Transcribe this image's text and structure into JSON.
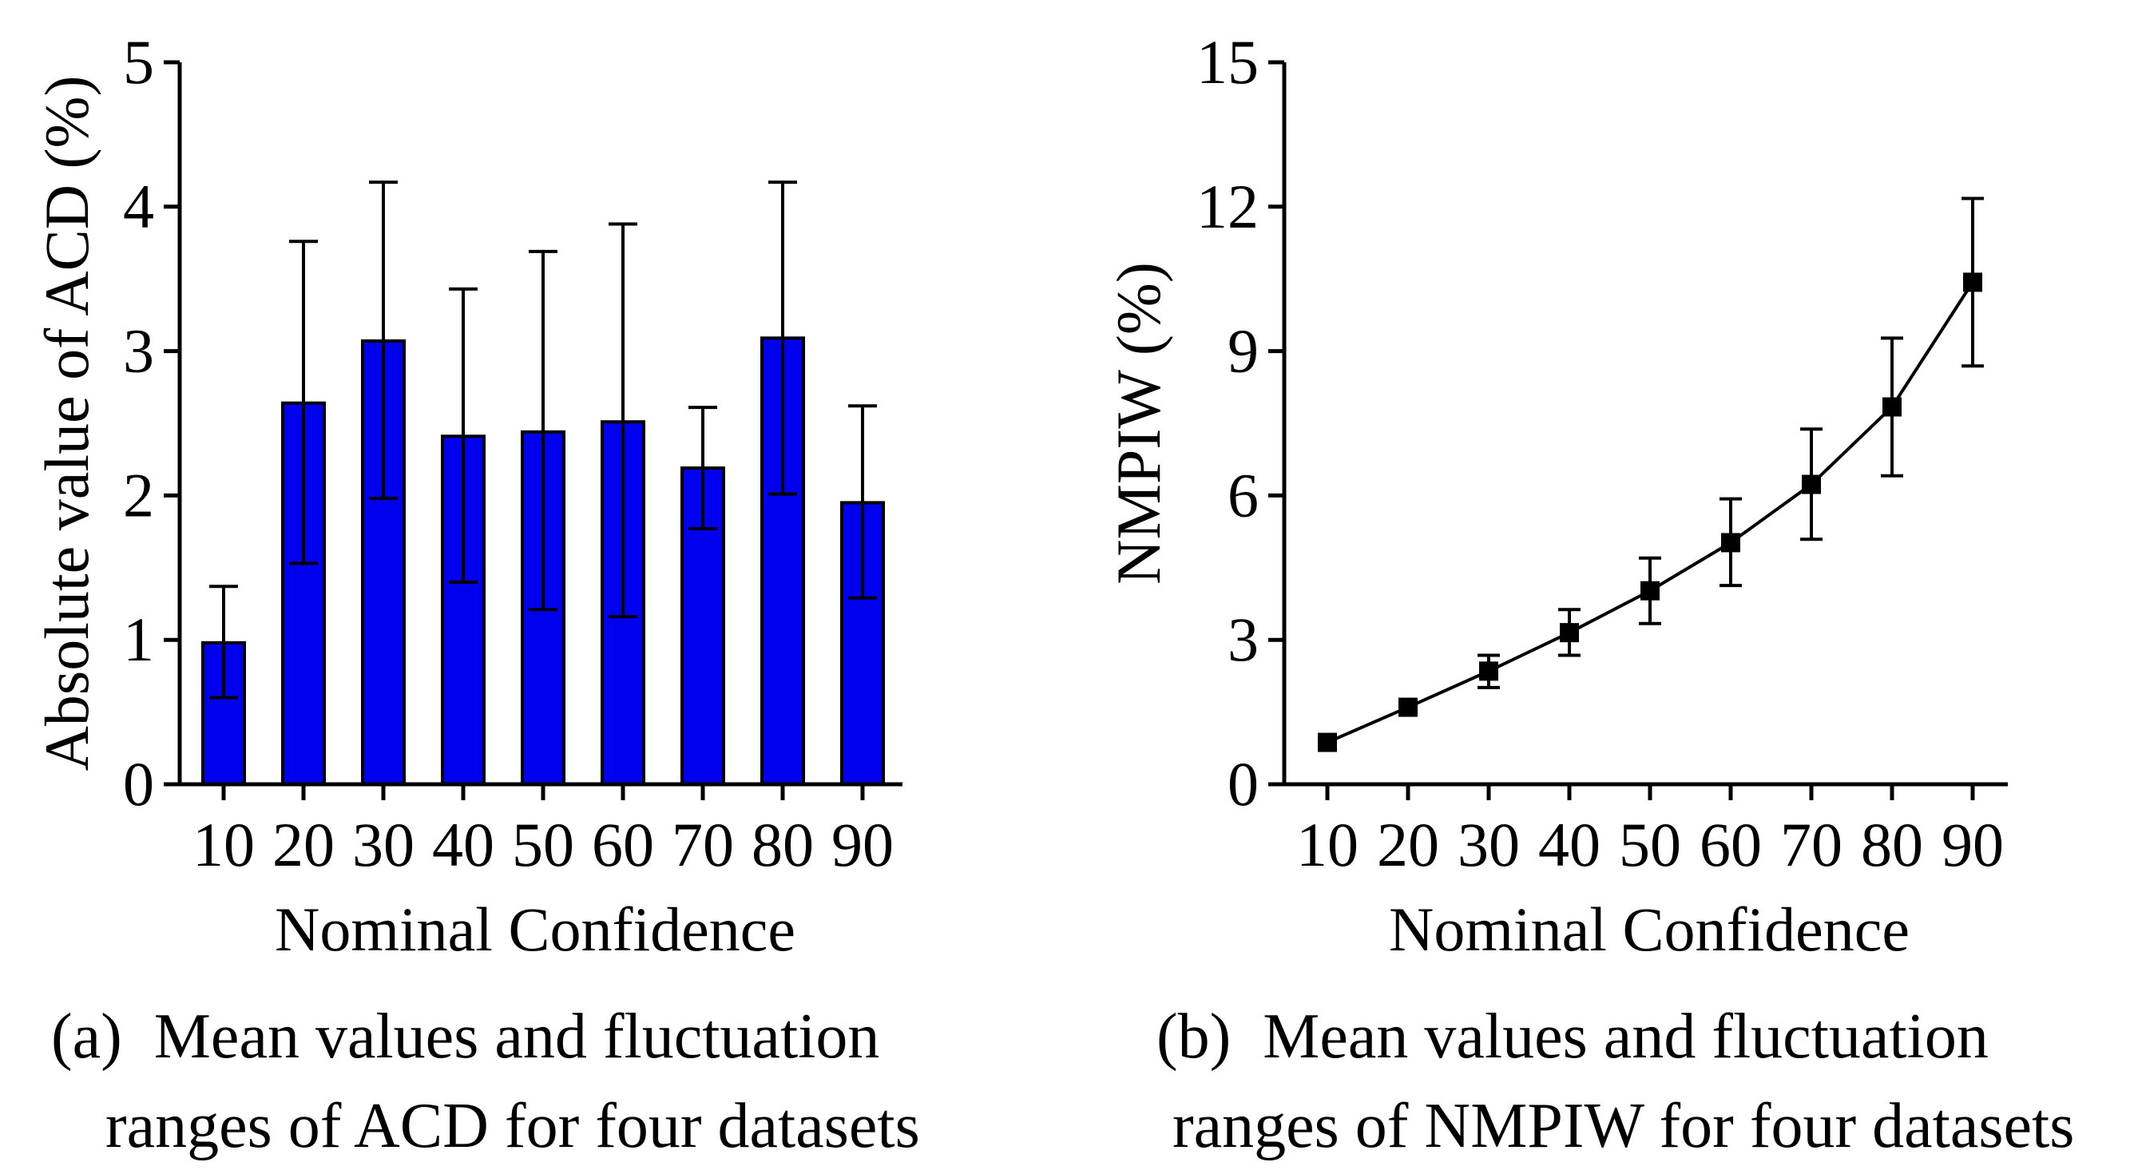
{
  "chart_data": [
    {
      "type": "bar",
      "panel_label": "(a)",
      "caption_line1": "Mean values and fluctuation",
      "caption_line2": "ranges of ACD for four datasets",
      "xlabel": "Nominal Confidence",
      "ylabel": "Absolute value of ACD (%)",
      "categories": [
        "10",
        "20",
        "30",
        "40",
        "50",
        "60",
        "70",
        "80",
        "90"
      ],
      "values": [
        0.98,
        2.64,
        3.07,
        2.41,
        2.44,
        2.51,
        2.19,
        3.09,
        1.95
      ],
      "error_upper": [
        1.37,
        3.76,
        4.17,
        3.43,
        3.69,
        3.88,
        2.61,
        4.17,
        2.62
      ],
      "error_lower": [
        0.6,
        1.53,
        1.98,
        1.4,
        1.21,
        1.16,
        1.77,
        2.01,
        1.29
      ],
      "ylim": [
        0,
        5
      ],
      "yticks": [
        "0",
        "1",
        "2",
        "3",
        "4",
        "5"
      ],
      "bar_color": "#0000ee",
      "grid": false
    },
    {
      "type": "line",
      "panel_label": "(b)",
      "caption_line1": "Mean values and fluctuation",
      "caption_line2": "ranges of NMPIW for four datasets",
      "xlabel": "Nominal Confidence",
      "ylabel": "NMPIW (%)",
      "categories": [
        "10",
        "20",
        "30",
        "40",
        "50",
        "60",
        "70",
        "80",
        "90"
      ],
      "values": [
        0.87,
        1.6,
        2.35,
        3.15,
        4.02,
        5.02,
        6.23,
        7.84,
        10.43
      ],
      "error_upper": [
        0.87,
        1.6,
        2.68,
        3.63,
        4.7,
        5.93,
        7.38,
        9.27,
        12.17
      ],
      "error_lower": [
        0.87,
        1.6,
        2.01,
        2.68,
        3.34,
        4.13,
        5.09,
        6.41,
        8.69
      ],
      "ylim": [
        0,
        15
      ],
      "yticks": [
        "0",
        "3",
        "6",
        "9",
        "12",
        "15"
      ],
      "line_color": "#000000",
      "marker": "square",
      "grid": false
    }
  ]
}
